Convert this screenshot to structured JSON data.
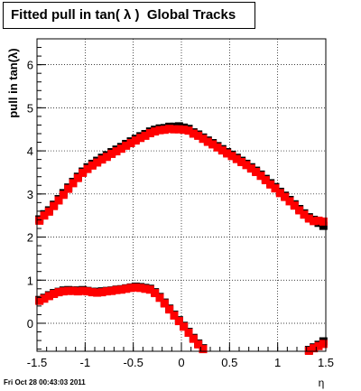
{
  "footer": {
    "timestamp": "Fri Oct 28 00:43:03 2011"
  },
  "chart_data": {
    "type": "scatter",
    "title": "Fitted pull in tan( λ )  Global Tracks",
    "xlabel": "η",
    "ylabel": "pull in tan(λ)",
    "xlim": [
      -1.5,
      1.5
    ],
    "ylim": [
      -0.65,
      6.6
    ],
    "xticks": [
      "-1.5",
      "-1",
      "-0.5",
      "0",
      "0.5",
      "1",
      "1.5"
    ],
    "yticks": [
      "0",
      "1",
      "2",
      "3",
      "4",
      "5",
      "6"
    ],
    "grid": true,
    "series": [
      {
        "color": "#000000",
        "x": [
          -1.475,
          -1.425,
          -1.375,
          -1.325,
          -1.275,
          -1.225,
          -1.175,
          -1.125,
          -1.075,
          -1.025,
          -0.975,
          -0.925,
          -0.875,
          -0.825,
          -0.775,
          -0.725,
          -0.675,
          -0.625,
          -0.575,
          -0.525,
          -0.475,
          -0.425,
          -0.375,
          -0.325,
          -0.275,
          -0.225,
          -0.175,
          -0.125,
          -0.075,
          -0.025,
          0.025,
          0.075,
          0.125,
          0.175,
          0.225,
          0.275,
          0.325,
          0.375,
          0.425,
          0.475,
          0.525,
          0.575,
          0.625,
          0.675,
          0.725,
          0.775,
          0.825,
          0.875,
          0.925,
          0.975,
          1.025,
          1.075,
          1.125,
          1.175,
          1.225,
          1.275,
          1.325,
          1.375,
          1.425,
          1.475
        ],
        "y": [
          2.41,
          2.53,
          2.62,
          2.75,
          2.88,
          3.02,
          3.15,
          3.28,
          3.4,
          3.52,
          3.62,
          3.7,
          3.77,
          3.84,
          3.9,
          3.97,
          4.03,
          4.09,
          4.16,
          4.22,
          4.28,
          4.34,
          4.39,
          4.45,
          4.49,
          4.52,
          4.53,
          4.56,
          4.56,
          4.57,
          4.54,
          4.51,
          4.43,
          4.38,
          4.31,
          4.24,
          4.18,
          4.11,
          4.04,
          3.97,
          3.91,
          3.84,
          3.77,
          3.7,
          3.62,
          3.54,
          3.45,
          3.35,
          3.25,
          3.16,
          3.05,
          2.96,
          2.86,
          2.76,
          2.65,
          2.55,
          2.46,
          2.4,
          2.33,
          2.26
        ]
      },
      {
        "color": "#ff0000",
        "x": [
          -1.475,
          -1.425,
          -1.375,
          -1.325,
          -1.275,
          -1.225,
          -1.175,
          -1.125,
          -1.075,
          -1.025,
          -0.975,
          -0.925,
          -0.875,
          -0.825,
          -0.775,
          -0.725,
          -0.675,
          -0.625,
          -0.575,
          -0.525,
          -0.475,
          -0.425,
          -0.375,
          -0.325,
          -0.275,
          -0.225,
          -0.175,
          -0.125,
          -0.075,
          -0.025,
          0.025,
          0.075,
          0.125,
          0.175,
          0.225,
          0.275,
          0.325,
          0.375,
          0.425,
          0.475,
          0.525,
          0.575,
          0.625,
          0.675,
          0.725,
          0.775,
          0.825,
          0.875,
          0.925,
          0.975,
          1.025,
          1.075,
          1.125,
          1.175,
          1.225,
          1.275,
          1.325,
          1.375,
          1.425,
          1.475
        ],
        "y": [
          2.38,
          2.5,
          2.59,
          2.72,
          2.85,
          2.98,
          3.12,
          3.25,
          3.37,
          3.49,
          3.58,
          3.66,
          3.73,
          3.8,
          3.86,
          3.93,
          3.99,
          4.05,
          4.12,
          4.18,
          4.24,
          4.3,
          4.35,
          4.41,
          4.45,
          4.48,
          4.49,
          4.51,
          4.5,
          4.5,
          4.49,
          4.47,
          4.4,
          4.35,
          4.28,
          4.21,
          4.15,
          4.08,
          4.01,
          3.94,
          3.88,
          3.81,
          3.74,
          3.67,
          3.59,
          3.51,
          3.42,
          3.32,
          3.22,
          3.13,
          3.02,
          2.93,
          2.83,
          2.73,
          2.62,
          2.52,
          2.43,
          2.37,
          2.38,
          2.36
        ]
      },
      {
        "color": "#000000",
        "x": [
          -1.475,
          -1.425,
          -1.375,
          -1.325,
          -1.275,
          -1.225,
          -1.175,
          -1.125,
          -1.075,
          -1.025,
          -0.975,
          -0.925,
          -0.875,
          -0.825,
          -0.775,
          -0.725,
          -0.675,
          -0.625,
          -0.575,
          -0.525,
          -0.475,
          -0.425,
          -0.375,
          -0.325,
          -0.275,
          -0.225,
          -0.175,
          -0.125,
          -0.075,
          -0.025,
          0.025,
          0.075,
          0.125,
          0.175,
          0.225,
          1.325,
          1.375,
          1.425,
          1.475
        ],
        "y": [
          0.54,
          0.59,
          0.65,
          0.7,
          0.73,
          0.76,
          0.77,
          0.76,
          0.76,
          0.77,
          0.75,
          0.73,
          0.73,
          0.74,
          0.75,
          0.76,
          0.78,
          0.79,
          0.81,
          0.83,
          0.85,
          0.84,
          0.82,
          0.8,
          0.72,
          0.61,
          0.48,
          0.34,
          0.2,
          0.07,
          -0.06,
          -0.2,
          -0.34,
          -0.47,
          -0.58,
          -0.62,
          -0.56,
          -0.5,
          -0.42
        ]
      },
      {
        "color": "#ff0000",
        "x": [
          -1.475,
          -1.425,
          -1.375,
          -1.325,
          -1.275,
          -1.225,
          -1.175,
          -1.125,
          -1.075,
          -1.025,
          -0.975,
          -0.925,
          -0.875,
          -0.825,
          -0.775,
          -0.725,
          -0.675,
          -0.625,
          -0.575,
          -0.525,
          -0.475,
          -0.425,
          -0.375,
          -0.325,
          -0.275,
          -0.225,
          -0.175,
          -0.125,
          -0.075,
          -0.025,
          0.025,
          0.075,
          0.125,
          0.175,
          0.225,
          1.325,
          1.375,
          1.425,
          1.475
        ],
        "y": [
          0.52,
          0.57,
          0.63,
          0.68,
          0.72,
          0.74,
          0.75,
          0.75,
          0.74,
          0.75,
          0.74,
          0.72,
          0.71,
          0.72,
          0.74,
          0.75,
          0.77,
          0.78,
          0.8,
          0.82,
          0.83,
          0.82,
          0.8,
          0.78,
          0.7,
          0.59,
          0.46,
          0.32,
          0.18,
          0.05,
          -0.08,
          -0.22,
          -0.36,
          -0.49,
          -0.6,
          -0.64,
          -0.58,
          -0.53,
          -0.48
        ]
      }
    ]
  }
}
